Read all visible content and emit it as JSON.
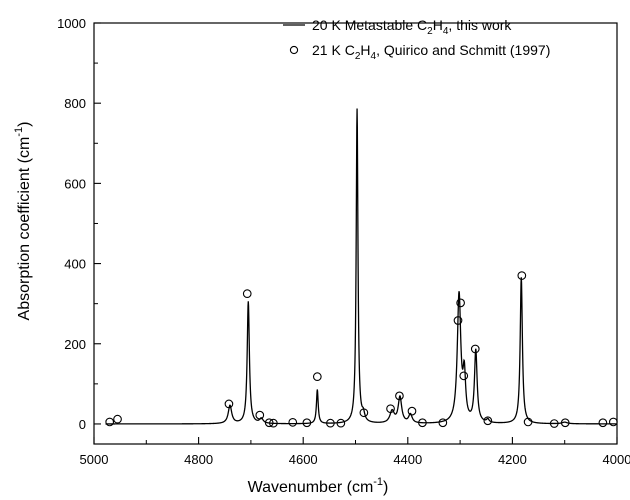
{
  "chart_data": {
    "type": "line",
    "title": "",
    "xlabel": "Wavenumber (cm",
    "xlabel_sup": "-1",
    "xlabel_close": ")",
    "ylabel": "Absorption coefficient (cm",
    "ylabel_sup": "-1",
    "ylabel_close": ")",
    "xlim": [
      5000,
      4000
    ],
    "ylim": [
      -50,
      1000
    ],
    "x_reversed": true,
    "grid": false,
    "legend_position": "top-right",
    "xticks": [
      5000,
      4800,
      4600,
      4400,
      4200,
      4000
    ],
    "yticks": [
      0,
      200,
      400,
      600,
      800,
      1000
    ],
    "xtick_labels": [
      "5000",
      "4800",
      "4600",
      "4400",
      "4200",
      "4000"
    ],
    "ytick_labels": [
      "0",
      "200",
      "400",
      "600",
      "800",
      "1000"
    ],
    "series": [
      {
        "name_parts": [
          "20 K Metastable C",
          "2",
          "H",
          "4",
          ", this work"
        ],
        "style": "line",
        "color": "#000000",
        "peaks": [
          {
            "x": 4740,
            "h": 45,
            "w": 4
          },
          {
            "x": 4705,
            "h": 305,
            "w": 2.5
          },
          {
            "x": 4680,
            "h": 12,
            "w": 4
          },
          {
            "x": 4573,
            "h": 85,
            "w": 2
          },
          {
            "x": 4497,
            "h": 785,
            "w": 2
          },
          {
            "x": 4485,
            "h": 18,
            "w": 3
          },
          {
            "x": 4430,
            "h": 30,
            "w": 5
          },
          {
            "x": 4415,
            "h": 65,
            "w": 4
          },
          {
            "x": 4395,
            "h": 22,
            "w": 4
          },
          {
            "x": 4302,
            "h": 320,
            "w": 4
          },
          {
            "x": 4292,
            "h": 110,
            "w": 3
          },
          {
            "x": 4270,
            "h": 180,
            "w": 3
          },
          {
            "x": 4247,
            "h": 8,
            "w": 3
          },
          {
            "x": 4183,
            "h": 365,
            "w": 2.5
          },
          {
            "x": 4100,
            "h": 4,
            "w": 6
          }
        ]
      },
      {
        "name_parts": [
          "21 K C",
          "2",
          "H",
          "4",
          ", Quirico and Schmitt (1997)"
        ],
        "style": "open-circle",
        "color": "#000000",
        "x": [
          4970,
          4955,
          4742,
          4707,
          4683,
          4665,
          4657,
          4620,
          4593,
          4573,
          4548,
          4528,
          4484,
          4433,
          4416,
          4392,
          4372,
          4333,
          4304,
          4299,
          4293,
          4271,
          4247,
          4182,
          4170,
          4120,
          4099,
          4027,
          4007
        ],
        "y": [
          5,
          12,
          50,
          325,
          22,
          3,
          2,
          4,
          3,
          118,
          2,
          2,
          28,
          38,
          70,
          32,
          3,
          3,
          258,
          302,
          120,
          187,
          8,
          370,
          5,
          1,
          3,
          3,
          5
        ]
      }
    ]
  }
}
